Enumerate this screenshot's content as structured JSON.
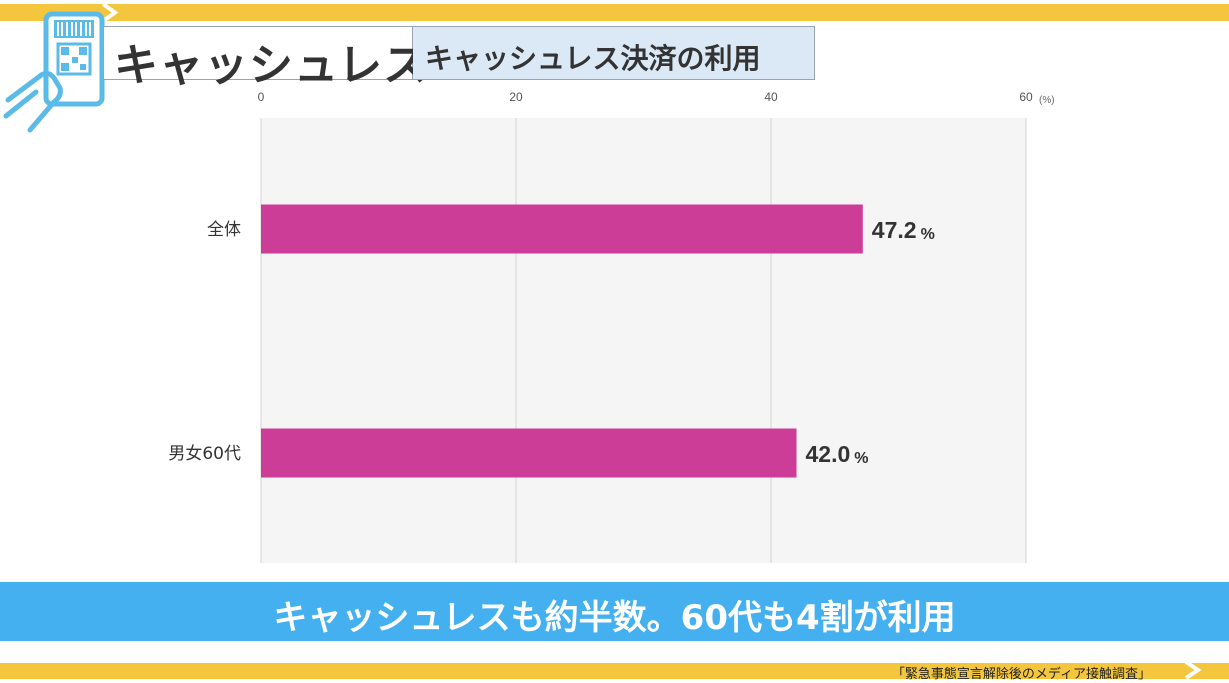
{
  "header": {
    "title": "キャッシュレス",
    "subtitle": "キャッシュレス決済の利用"
  },
  "chart_data": {
    "type": "bar",
    "orientation": "horizontal",
    "categories": [
      "全体",
      "男女60代"
    ],
    "values": [
      47.2,
      42.0
    ],
    "value_labels": [
      "47.2",
      "42.0"
    ],
    "value_unit": "%",
    "x_ticks": [
      "0",
      "20",
      "40",
      "60"
    ],
    "x_unit": "(%)",
    "xlim": [
      0,
      60
    ],
    "grid": true,
    "bar_color": "#cc3d97",
    "title": "",
    "xlabel": "",
    "ylabel": ""
  },
  "banner": {
    "text": "キャッシュレスも約半数。60代も4割が利用"
  },
  "source": {
    "text": "「緊急事態宣言解除後のメディア接触調査」"
  },
  "colors": {
    "accent_yellow": "#f4c63d",
    "banner_blue": "#45b0ef",
    "icon_blue": "#5bbbe8"
  },
  "icons": [
    "smartphone-qr-icon",
    "chevron-right-icon"
  ]
}
